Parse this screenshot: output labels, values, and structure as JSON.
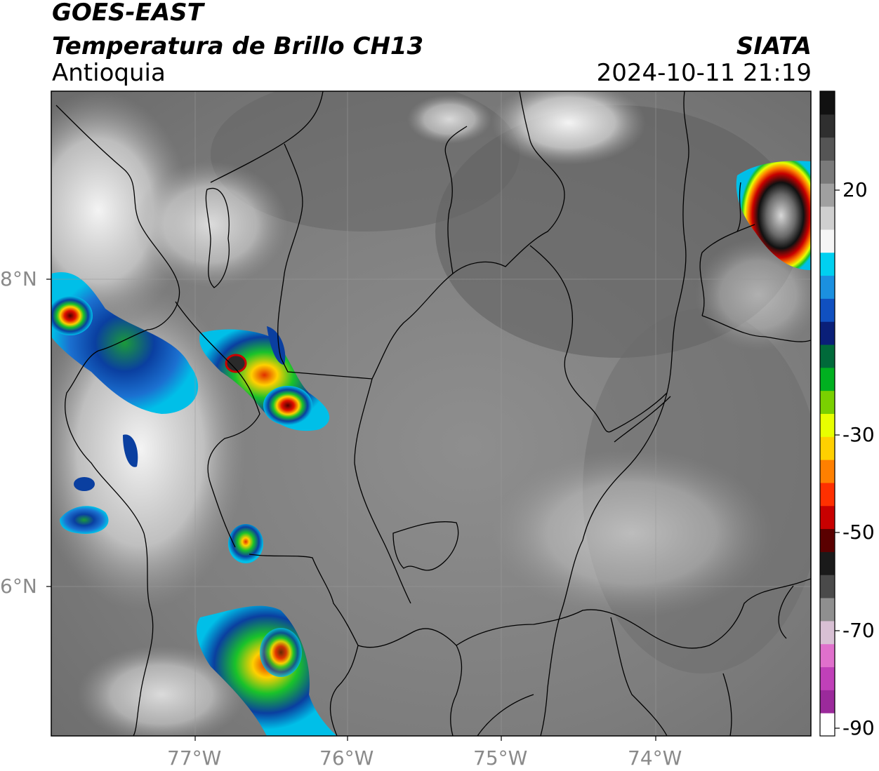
{
  "header": {
    "satellite": "GOES-EAST",
    "product": "Temperatura de Brillo CH13",
    "region": "Antioquia",
    "agency": "SIATA",
    "timestamp": "2024-10-11 21:19"
  },
  "map": {
    "latitude_labels": [
      "8°N",
      "6°N"
    ],
    "longitude_labels": [
      "77°W",
      "76°W",
      "75°W",
      "74°W"
    ],
    "gridlines": true,
    "basemap_fill": "grayscale infrared brightness temperature",
    "colors": {
      "cold_cloud_cyan": "#00bfe8",
      "cold_cloud_blue": "#0a3fa0",
      "cold_cloud_green": "#19c22a",
      "cold_cloud_yellow": "#f3f000",
      "cold_cloud_red": "#e01000",
      "frame": "#000000"
    }
  },
  "colorbar": {
    "unit_label": "",
    "tick_labels": [
      "20",
      "-30",
      "-50",
      "-70",
      "-90"
    ],
    "range": [
      -90,
      30
    ],
    "bands": [
      "#ffffff",
      "#9b2a9b",
      "#c040b8",
      "#e070cc",
      "#d8c0d4",
      "#8f8f8f",
      "#4a4a4a",
      "#1a1a1a",
      "#5a0000",
      "#c80000",
      "#ff3000",
      "#ff8000",
      "#ffd000",
      "#e8ff00",
      "#7ad000",
      "#00b020",
      "#006a3a",
      "#0a1f78",
      "#1050c0",
      "#1b90e0",
      "#00d0f0",
      "#f5f5f5",
      "#cfcfcf",
      "#a0a0a0",
      "#7a7a7a",
      "#555555",
      "#2f2f2f",
      "#111111"
    ]
  }
}
